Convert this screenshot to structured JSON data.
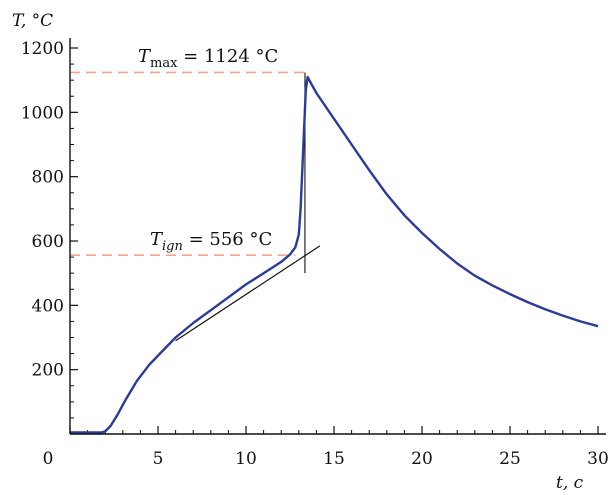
{
  "chart_data": {
    "type": "line",
    "title": "",
    "xlabel": "t, c",
    "ylabel": "T, °C",
    "xlim": [
      0,
      30
    ],
    "ylim": [
      0,
      1200
    ],
    "x_ticks": [
      0,
      5,
      10,
      15,
      20,
      25,
      30
    ],
    "y_ticks": [
      200,
      400,
      600,
      800,
      1000,
      1200
    ],
    "x_minor_step": 1,
    "y_minor_step": 50,
    "grid": false,
    "colors": {
      "curve": "#2b3a9b",
      "reference": "#f2a58c",
      "tangent": "#111111"
    },
    "series": [
      {
        "x": [
          0,
          0.5,
          1,
          1.5,
          1.8,
          2.0,
          2.3,
          2.7,
          3.2,
          3.8,
          4.5,
          5.2,
          6,
          7,
          8,
          9,
          10,
          11,
          12,
          12.5,
          12.8,
          13.0,
          13.1,
          13.2,
          13.3,
          13.4,
          13.5,
          13.7,
          14,
          15,
          16,
          17,
          18,
          19,
          20,
          21,
          22,
          23,
          24,
          25,
          26,
          27,
          28,
          29,
          30
        ],
        "y": [
          5,
          5,
          5,
          5,
          5,
          8,
          25,
          60,
          110,
          165,
          215,
          255,
          300,
          345,
          385,
          425,
          465,
          500,
          535,
          558,
          580,
          620,
          700,
          820,
          950,
          1070,
          1110,
          1090,
          1060,
          980,
          900,
          820,
          745,
          680,
          625,
          575,
          530,
          492,
          462,
          435,
          410,
          388,
          368,
          350,
          335
        ]
      }
    ],
    "reference_lines": [
      {
        "y": 1124,
        "x_end": 13.5,
        "label_main": "T",
        "label_sub": "max",
        "label_value": " = 1124 °C"
      },
      {
        "y": 556,
        "x_end": 12.8,
        "label_main": "T",
        "label_sub": "ign",
        "label_value": " = 556 °C"
      }
    ],
    "tangent": {
      "x": [
        6,
        14.2
      ],
      "y": [
        290,
        585
      ]
    },
    "vertical_marker": {
      "x": 13.35,
      "y": [
        500,
        1124
      ]
    }
  }
}
